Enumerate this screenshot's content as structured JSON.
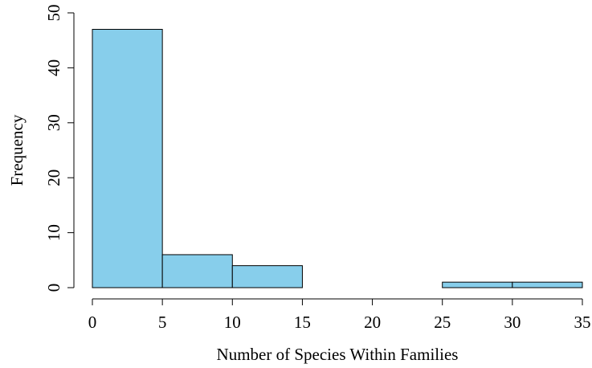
{
  "chart_data": {
    "type": "bar",
    "bins": [
      {
        "x0": 0,
        "x1": 5,
        "count": 47
      },
      {
        "x0": 5,
        "x1": 10,
        "count": 6
      },
      {
        "x0": 10,
        "x1": 15,
        "count": 4
      },
      {
        "x0": 15,
        "x1": 20,
        "count": 0
      },
      {
        "x0": 20,
        "x1": 25,
        "count": 0
      },
      {
        "x0": 25,
        "x1": 30,
        "count": 1
      },
      {
        "x0": 30,
        "x1": 35,
        "count": 1
      }
    ],
    "xlabel": "Number  of Species Within Families",
    "ylabel": "Frequency",
    "xticks": [
      0,
      5,
      10,
      15,
      20,
      25,
      30,
      35
    ],
    "yticks": [
      0,
      10,
      20,
      30,
      40,
      50
    ],
    "xlim": [
      0,
      35
    ],
    "ylim": [
      0,
      50
    ],
    "grid": false,
    "bar_color": "#87CEEB",
    "edge_color": "#000000"
  }
}
